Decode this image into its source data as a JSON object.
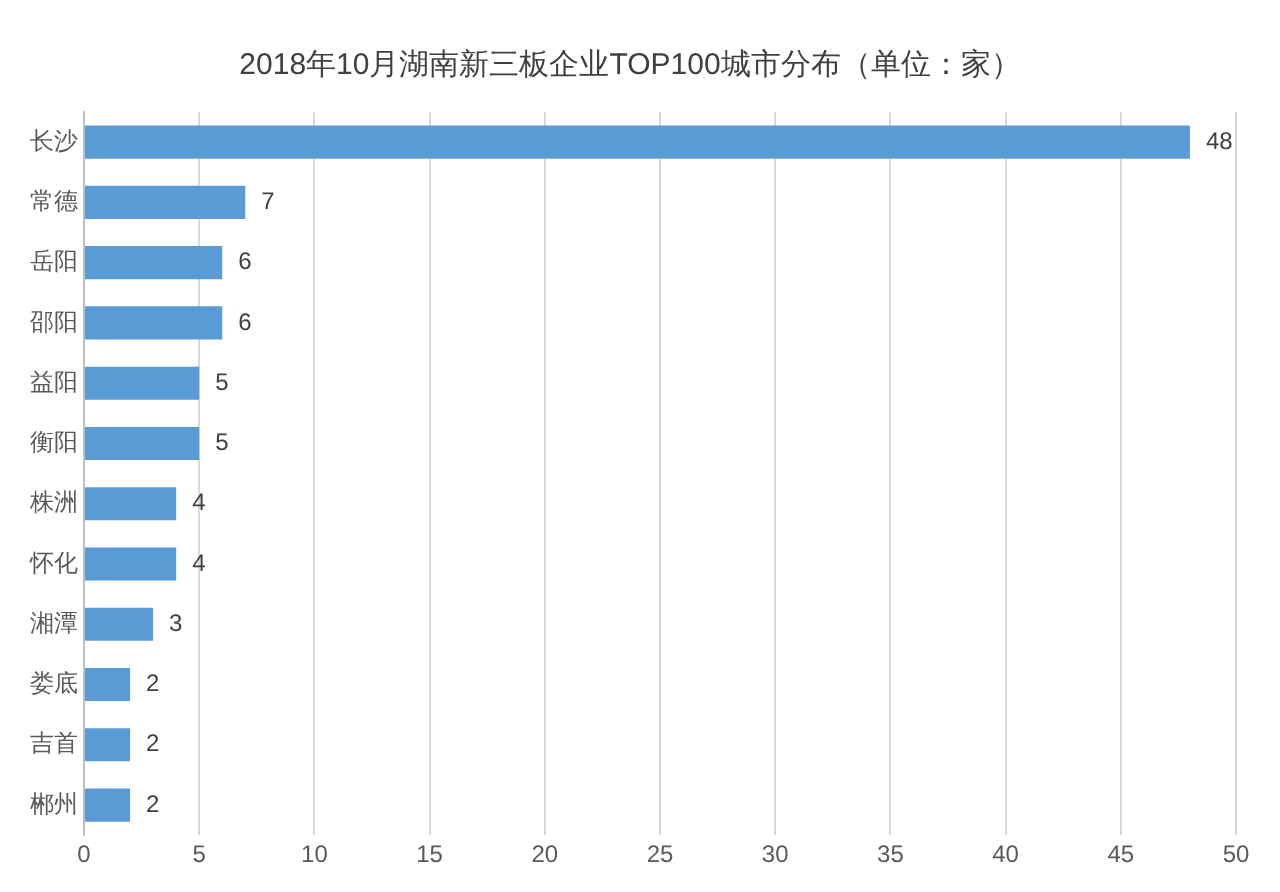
{
  "chart_data": {
    "type": "bar",
    "orientation": "horizontal",
    "title": "2018年10月湖南新三板企业TOP100城市分布（单位：家）",
    "categories": [
      "长沙",
      "常德",
      "岳阳",
      "邵阳",
      "益阳",
      "衡阳",
      "株洲",
      "怀化",
      "湘潭",
      "娄底",
      "吉首",
      "郴州"
    ],
    "values": [
      48,
      7,
      6,
      6,
      5,
      5,
      4,
      4,
      3,
      2,
      2,
      2
    ],
    "color": "#5b9bd5",
    "xlim": [
      0,
      50
    ],
    "xticks": [
      0,
      5,
      10,
      15,
      20,
      25,
      30,
      35,
      40,
      45,
      50
    ],
    "grid": "x",
    "data_labels": true,
    "legend": false
  }
}
